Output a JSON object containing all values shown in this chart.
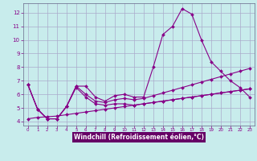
{
  "xlabel": "Windchill (Refroidissement éolien,°C)",
  "bg_color": "#c8ecec",
  "xlabel_bg_color": "#660066",
  "line_color": "#880088",
  "grid_color": "#aaaacc",
  "spine_color": "#666688",
  "xlim": [
    -0.5,
    23.5
  ],
  "ylim": [
    3.7,
    12.7
  ],
  "yticks": [
    4,
    5,
    6,
    7,
    8,
    9,
    10,
    11,
    12
  ],
  "xticks": [
    0,
    1,
    2,
    3,
    4,
    5,
    6,
    7,
    8,
    9,
    10,
    11,
    12,
    13,
    14,
    15,
    16,
    17,
    18,
    19,
    20,
    21,
    22,
    23
  ],
  "series": [
    [
      6.7,
      4.9,
      4.2,
      4.2,
      5.1,
      6.6,
      6.6,
      5.8,
      5.5,
      5.9,
      6.0,
      5.8,
      5.8,
      8.0,
      10.4,
      11.0,
      12.3,
      11.9,
      10.0,
      8.4,
      7.7,
      7.0,
      6.5,
      5.8
    ],
    [
      6.7,
      4.9,
      4.2,
      4.2,
      5.1,
      6.6,
      6.0,
      5.5,
      5.4,
      5.6,
      5.7,
      5.6,
      5.7,
      5.9,
      6.1,
      6.3,
      6.5,
      6.7,
      6.9,
      7.1,
      7.3,
      7.5,
      7.7,
      7.9
    ],
    [
      6.7,
      4.9,
      4.2,
      4.2,
      5.1,
      6.5,
      5.8,
      5.3,
      5.2,
      5.3,
      5.3,
      5.2,
      5.3,
      5.4,
      5.5,
      5.6,
      5.7,
      5.8,
      5.9,
      6.0,
      6.1,
      6.2,
      6.3,
      6.4
    ],
    [
      4.2,
      4.3,
      4.35,
      4.4,
      4.5,
      4.6,
      4.7,
      4.8,
      4.9,
      5.0,
      5.1,
      5.2,
      5.3,
      5.4,
      5.5,
      5.6,
      5.7,
      5.8,
      5.9,
      6.0,
      6.1,
      6.2,
      6.3,
      6.4
    ]
  ]
}
